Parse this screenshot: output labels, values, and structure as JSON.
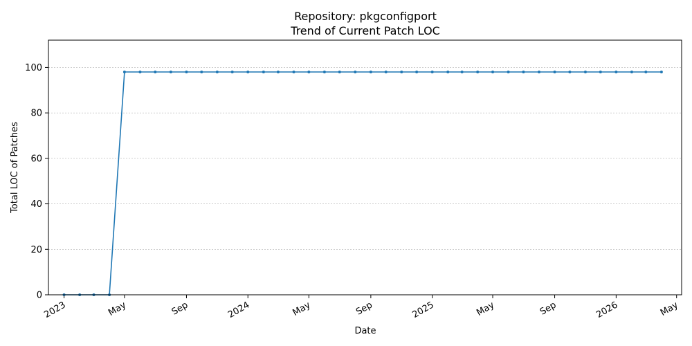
{
  "chart_data": {
    "type": "line",
    "title": "Repository: pkgconfigport",
    "subtitle": "Trend of Current Patch LOC",
    "xlabel": "Date",
    "ylabel": "Total LOC of Patches",
    "xlim": [
      "2022-12-01",
      "2026-05-11"
    ],
    "ylim": [
      0,
      112
    ],
    "yticks": [
      0,
      20,
      40,
      60,
      80,
      100
    ],
    "xticks": [
      {
        "date": "2023-01-01",
        "label": "2023"
      },
      {
        "date": "2023-05-01",
        "label": "May"
      },
      {
        "date": "2023-09-01",
        "label": "Sep"
      },
      {
        "date": "2024-01-01",
        "label": "2024"
      },
      {
        "date": "2024-05-01",
        "label": "May"
      },
      {
        "date": "2024-09-01",
        "label": "Sep"
      },
      {
        "date": "2025-01-01",
        "label": "2025"
      },
      {
        "date": "2025-05-01",
        "label": "May"
      },
      {
        "date": "2025-09-01",
        "label": "Sep"
      },
      {
        "date": "2026-01-01",
        "label": "2026"
      },
      {
        "date": "2026-05-01",
        "label": "May"
      }
    ],
    "grid": "y",
    "line_color": "#1f77b4",
    "points": [
      {
        "x": "2023-01-01",
        "y": 0
      },
      {
        "x": "2023-02-01",
        "y": 0
      },
      {
        "x": "2023-03-01",
        "y": 0
      },
      {
        "x": "2023-04-01",
        "y": 0
      },
      {
        "x": "2023-05-01",
        "y": 98
      },
      {
        "x": "2023-06-01",
        "y": 98
      },
      {
        "x": "2023-07-01",
        "y": 98
      },
      {
        "x": "2023-08-01",
        "y": 98
      },
      {
        "x": "2023-09-01",
        "y": 98
      },
      {
        "x": "2023-10-01",
        "y": 98
      },
      {
        "x": "2023-11-01",
        "y": 98
      },
      {
        "x": "2023-12-01",
        "y": 98
      },
      {
        "x": "2024-01-01",
        "y": 98
      },
      {
        "x": "2024-02-01",
        "y": 98
      },
      {
        "x": "2024-03-01",
        "y": 98
      },
      {
        "x": "2024-04-01",
        "y": 98
      },
      {
        "x": "2024-05-01",
        "y": 98
      },
      {
        "x": "2024-06-01",
        "y": 98
      },
      {
        "x": "2024-07-01",
        "y": 98
      },
      {
        "x": "2024-08-01",
        "y": 98
      },
      {
        "x": "2024-09-01",
        "y": 98
      },
      {
        "x": "2024-10-01",
        "y": 98
      },
      {
        "x": "2024-11-01",
        "y": 98
      },
      {
        "x": "2024-12-01",
        "y": 98
      },
      {
        "x": "2025-01-01",
        "y": 98
      },
      {
        "x": "2025-02-01",
        "y": 98
      },
      {
        "x": "2025-03-01",
        "y": 98
      },
      {
        "x": "2025-04-01",
        "y": 98
      },
      {
        "x": "2025-05-01",
        "y": 98
      },
      {
        "x": "2025-06-01",
        "y": 98
      },
      {
        "x": "2025-07-01",
        "y": 98
      },
      {
        "x": "2025-08-01",
        "y": 98
      },
      {
        "x": "2025-09-01",
        "y": 98
      },
      {
        "x": "2025-10-01",
        "y": 98
      },
      {
        "x": "2025-11-01",
        "y": 98
      },
      {
        "x": "2025-12-01",
        "y": 98
      },
      {
        "x": "2026-01-01",
        "y": 98
      },
      {
        "x": "2026-02-01",
        "y": 98
      },
      {
        "x": "2026-03-01",
        "y": 98
      },
      {
        "x": "2026-04-01",
        "y": 98
      }
    ]
  }
}
